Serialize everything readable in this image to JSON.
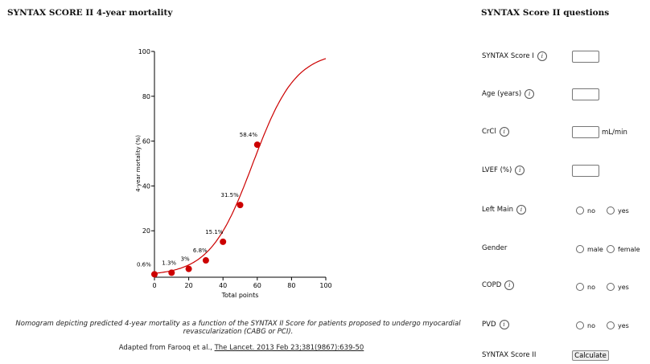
{
  "left_title": "SYNTAX SCORE II 4-year mortality",
  "right_title": "SYNTAX Score II questions",
  "chart_data": {
    "type": "line",
    "xlabel": "Total points",
    "ylabel": "4-year mortality (%)",
    "xlim": [
      0,
      100
    ],
    "ylim": [
      0,
      100
    ],
    "x_ticks": [
      0,
      20,
      40,
      60,
      80,
      100
    ],
    "y_ticks": [
      20,
      40,
      60,
      80,
      100
    ],
    "curve_color": "#cc0000",
    "points": [
      {
        "x": 0,
        "y": 0.6,
        "label": "0.6%"
      },
      {
        "x": 10,
        "y": 1.3,
        "label": "1.3%"
      },
      {
        "x": 20,
        "y": 3,
        "label": "3%"
      },
      {
        "x": 30,
        "y": 6.8,
        "label": "6.8%"
      },
      {
        "x": 40,
        "y": 15.1,
        "label": "15.1%"
      },
      {
        "x": 50,
        "y": 31.5,
        "label": "31.5%"
      },
      {
        "x": 60,
        "y": 58.4,
        "label": "58.4%"
      }
    ],
    "grid": false,
    "legend": "none"
  },
  "caption": "Nomogram depicting predicted 4-year mortality as a function of the SYNTAX II Score for patients proposed to undergo myocardial revascularization (CABG or PCI).",
  "credit": {
    "prefix": "Adapted from Farooq et al., ",
    "link": "The Lancet. 2013 Feb 23;381(9867):639-50"
  },
  "questions": {
    "syntax_score_1": {
      "label": "SYNTAX Score I",
      "value": ""
    },
    "age": {
      "label": "Age (years)",
      "value": ""
    },
    "crcl": {
      "label": "CrCl",
      "value": "",
      "unit": "mL/min"
    },
    "lvef": {
      "label": "LVEF (%)",
      "value": ""
    },
    "left_main": {
      "label": "Left Main",
      "options": [
        "no",
        "yes"
      ]
    },
    "gender": {
      "label": "Gender",
      "options": [
        "male",
        "female"
      ]
    },
    "copd": {
      "label": "COPD",
      "options": [
        "no",
        "yes"
      ]
    },
    "pvd": {
      "label": "PVD",
      "options": [
        "no",
        "yes"
      ]
    },
    "syntax_score_2": {
      "label": "SYNTAX Score II",
      "button": "Calculate"
    }
  },
  "info_icon": "i"
}
